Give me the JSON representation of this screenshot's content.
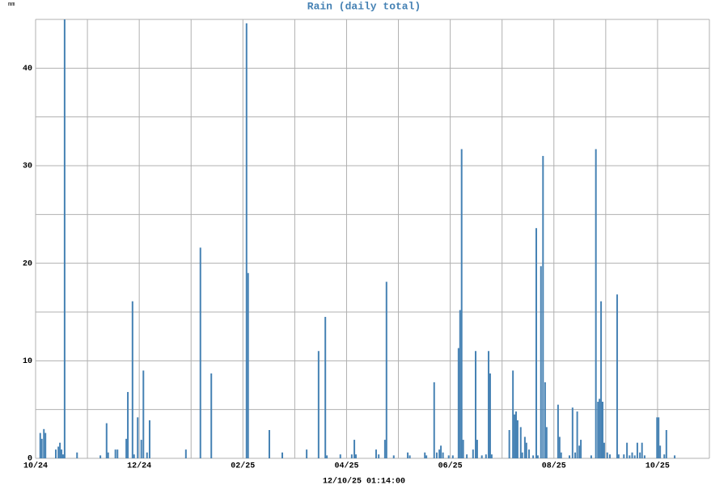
{
  "chart_data": {
    "type": "bar",
    "title": "Rain (daily total)",
    "y_unit": "mm",
    "x_label": "12/10/25 01:14:00",
    "color": "#4682b4",
    "grid": true,
    "xlim": [
      0,
      13
    ],
    "xticks": [
      {
        "value": 0,
        "label": "10/24"
      },
      {
        "value": 2,
        "label": "12/24"
      },
      {
        "value": 4,
        "label": "02/25"
      },
      {
        "value": 6,
        "label": "04/25"
      },
      {
        "value": 8,
        "label": "06/25"
      },
      {
        "value": 10,
        "label": "08/25"
      },
      {
        "value": 12,
        "label": "10/25"
      }
    ],
    "x_minor_ticks": [
      1,
      3,
      5,
      7,
      9,
      11,
      13
    ],
    "ylim": [
      0,
      45
    ],
    "yticks": [
      0,
      10,
      20,
      30,
      40
    ],
    "y_minor_ticks": [
      5,
      15,
      25,
      35,
      45
    ],
    "x": [
      0.09,
      0.12,
      0.16,
      0.19,
      0.39,
      0.44,
      0.47,
      0.5,
      0.53,
      0.56,
      0.8,
      1.25,
      1.37,
      1.4,
      1.54,
      1.58,
      1.75,
      1.78,
      1.87,
      1.9,
      1.97,
      2.04,
      2.08,
      2.15,
      2.2,
      2.9,
      3.18,
      3.39,
      4.07,
      4.1,
      4.51,
      4.76,
      5.23,
      5.46,
      5.59,
      5.62,
      5.88,
      6.1,
      6.15,
      6.18,
      6.57,
      6.62,
      6.74,
      6.77,
      6.91,
      7.18,
      7.22,
      7.51,
      7.54,
      7.69,
      7.74,
      7.79,
      7.82,
      7.86,
      7.97,
      8.05,
      8.16,
      8.19,
      8.22,
      8.25,
      8.32,
      8.44,
      8.49,
      8.52,
      8.61,
      8.69,
      8.74,
      8.77,
      8.8,
      9.14,
      9.21,
      9.24,
      9.27,
      9.3,
      9.36,
      9.39,
      9.44,
      9.47,
      9.52,
      9.6,
      9.66,
      9.69,
      9.75,
      9.79,
      9.83,
      9.86,
      10.08,
      10.11,
      10.14,
      10.3,
      10.36,
      10.41,
      10.45,
      10.49,
      10.52,
      10.72,
      10.81,
      10.85,
      10.88,
      10.91,
      10.94,
      10.97,
      11.03,
      11.08,
      11.22,
      11.25,
      11.35,
      11.41,
      11.46,
      11.51,
      11.56,
      11.61,
      11.66,
      11.7,
      11.75,
      11.99,
      12.02,
      12.05,
      12.13,
      12.17,
      12.33
    ],
    "values": [
      2.6,
      2.0,
      3.0,
      2.6,
      0.9,
      1.2,
      1.6,
      0.9,
      0.4,
      45,
      0.6,
      0.3,
      3.6,
      0.6,
      0.9,
      0.9,
      2.0,
      6.8,
      16.1,
      0.4,
      4.2,
      1.9,
      9.0,
      0.6,
      3.9,
      0.9,
      21.6,
      8.7,
      44.6,
      19.0,
      2.9,
      0.6,
      0.9,
      11.0,
      14.5,
      0.3,
      0.4,
      0.4,
      1.9,
      0.4,
      0.9,
      0.4,
      1.9,
      18.1,
      0.3,
      0.6,
      0.3,
      0.6,
      0.3,
      7.8,
      0.6,
      0.9,
      1.3,
      0.6,
      0.3,
      0.3,
      11.3,
      15.2,
      31.7,
      1.9,
      0.4,
      0.9,
      11.0,
      1.9,
      0.3,
      0.4,
      11.0,
      8.7,
      0.4,
      2.9,
      9.0,
      4.5,
      4.8,
      3.9,
      3.2,
      0.6,
      2.2,
      1.6,
      0.9,
      0.3,
      23.6,
      0.3,
      19.7,
      31.0,
      7.8,
      3.2,
      5.5,
      2.2,
      0.6,
      0.3,
      5.2,
      0.6,
      4.8,
      1.3,
      1.9,
      0.3,
      31.7,
      5.8,
      6.1,
      16.1,
      5.8,
      1.6,
      0.6,
      0.4,
      16.8,
      0.4,
      0.4,
      1.6,
      0.3,
      0.6,
      0.3,
      1.6,
      0.6,
      1.6,
      0.3,
      4.2,
      4.2,
      1.3,
      0.4,
      2.9,
      0.3
    ]
  }
}
